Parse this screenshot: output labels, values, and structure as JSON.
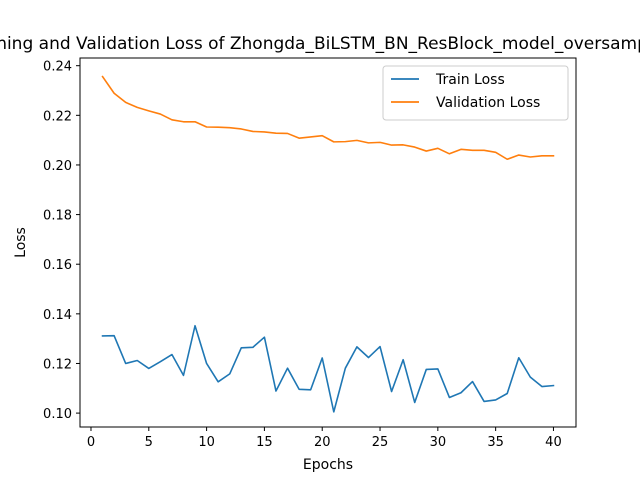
{
  "chart_data": {
    "type": "line",
    "title": "Training and Validation Loss of Zhongda_BiLSTM_BN_ResBlock_model_oversampled",
    "xlabel": "Epochs",
    "ylabel": "Loss",
    "xlim": [
      -0.95,
      41.95
    ],
    "ylim": [
      0.0944,
      0.2431
    ],
    "xticks": [
      0,
      5,
      10,
      15,
      20,
      25,
      30,
      35,
      40
    ],
    "yticks": [
      0.1,
      0.12,
      0.14,
      0.16,
      0.18,
      0.2,
      0.22,
      0.24
    ],
    "ytick_labels": [
      "0.10",
      "0.12",
      "0.14",
      "0.16",
      "0.18",
      "0.20",
      "0.22",
      "0.24"
    ],
    "grid": false,
    "legend_position": "top-right",
    "x": [
      1,
      2,
      3,
      4,
      5,
      6,
      7,
      8,
      9,
      10,
      11,
      12,
      13,
      14,
      15,
      16,
      17,
      18,
      19,
      20,
      21,
      22,
      23,
      24,
      25,
      26,
      27,
      28,
      29,
      30,
      31,
      32,
      33,
      34,
      35,
      36,
      37,
      38,
      39,
      40
    ],
    "series": [
      {
        "name": "Train Loss",
        "color": "#1f77b4",
        "values": [
          0.1311,
          0.1312,
          0.12,
          0.1212,
          0.118,
          0.1207,
          0.1236,
          0.1152,
          0.1352,
          0.12,
          0.1126,
          0.1158,
          0.1263,
          0.1265,
          0.1306,
          0.1089,
          0.1181,
          0.1096,
          0.1094,
          0.1222,
          0.1005,
          0.1181,
          0.1267,
          0.1224,
          0.1268,
          0.1087,
          0.1215,
          0.1043,
          0.1176,
          0.1178,
          0.1063,
          0.1082,
          0.1127,
          0.1047,
          0.1053,
          0.1079,
          0.1223,
          0.1145,
          0.1107,
          0.1111
        ]
      },
      {
        "name": "Validation Loss",
        "color": "#ff7f0e",
        "values": [
          0.2356,
          0.2289,
          0.2252,
          0.2232,
          0.2218,
          0.2205,
          0.2182,
          0.2174,
          0.2174,
          0.2153,
          0.2152,
          0.215,
          0.2145,
          0.2135,
          0.2133,
          0.2128,
          0.2127,
          0.2108,
          0.2113,
          0.2118,
          0.2093,
          0.2094,
          0.2099,
          0.2089,
          0.2091,
          0.208,
          0.2081,
          0.2072,
          0.2056,
          0.2067,
          0.2045,
          0.2063,
          0.2059,
          0.2059,
          0.2051,
          0.2023,
          0.204,
          0.2032,
          0.2037,
          0.2037
        ]
      }
    ]
  }
}
